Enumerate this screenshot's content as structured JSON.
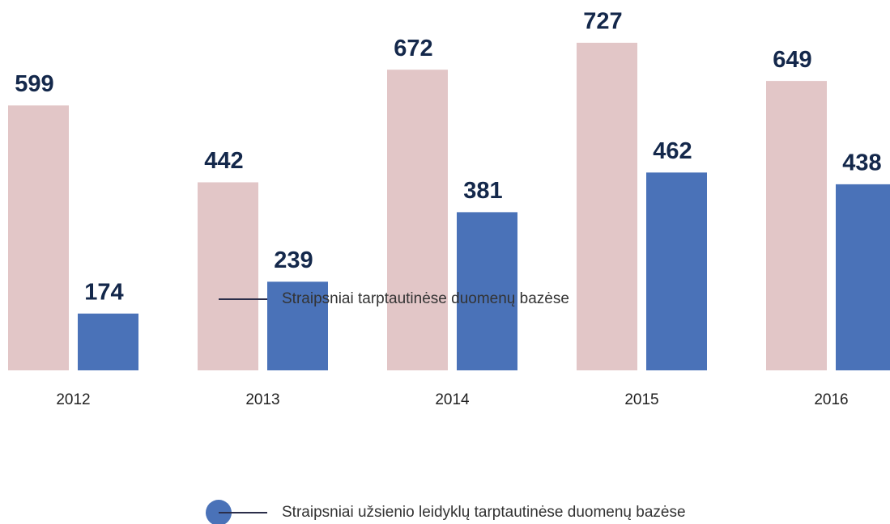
{
  "chart_data": {
    "type": "bar",
    "categories": [
      "2012",
      "2013",
      "2014",
      "2015",
      "2016"
    ],
    "series": [
      {
        "name": "Straipsniai tarptautinėse duomenų bazėse",
        "color": "#e2c6c7",
        "values": [
          599,
          442,
          672,
          727,
          649
        ]
      },
      {
        "name": "Straipsniai užsienio leidyklų tarptautinėse duomenų bazėse",
        "color": "#4a72b8",
        "values": [
          174,
          239,
          381,
          462,
          438
        ]
      }
    ],
    "ylim": [
      58,
      740
    ]
  }
}
